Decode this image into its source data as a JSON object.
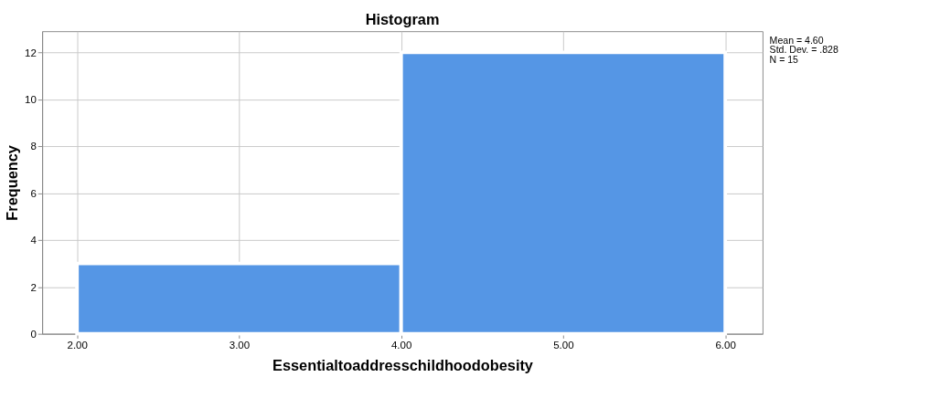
{
  "chart_data": {
    "type": "histogram",
    "title": "Histogram",
    "xlabel": "Essentialtoaddresschildhoodobesity",
    "ylabel": "Frequency",
    "bins": [
      2,
      4,
      6
    ],
    "values": [
      3,
      12
    ],
    "color": "#5596e5",
    "xlim": [
      1.785,
      6.23
    ],
    "xticks": [
      {
        "value": 2,
        "label": "2.00"
      },
      {
        "value": 3,
        "label": "3.00"
      },
      {
        "value": 4,
        "label": "4.00"
      },
      {
        "value": 5,
        "label": "5.00"
      },
      {
        "value": 6,
        "label": "6.00"
      }
    ],
    "ylim": [
      0,
      12.9
    ],
    "yticks": [
      0,
      2,
      4,
      6,
      8,
      10,
      12
    ],
    "grid": true,
    "annotations": [
      "Mean = 4.60",
      "Std. Dev. = .828",
      "N = 15"
    ]
  }
}
